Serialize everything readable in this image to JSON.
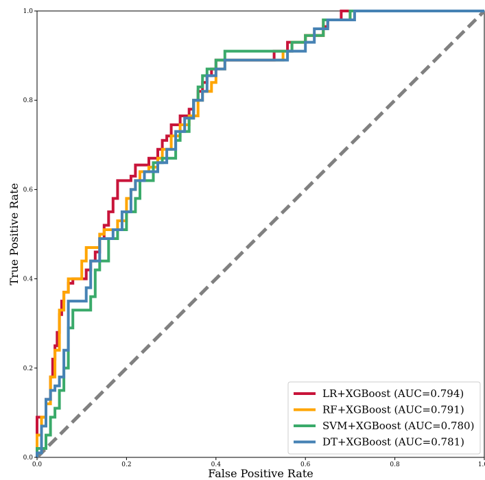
{
  "chart_data": {
    "type": "line",
    "title": "",
    "xlabel": "False Positive Rate",
    "ylabel": "True Positive Rate",
    "xlim": [
      0.0,
      1.0
    ],
    "ylim": [
      0.0,
      1.0
    ],
    "x_ticks": [
      "0.0",
      "0.2",
      "0.4",
      "0.6",
      "0.8",
      "1.0"
    ],
    "y_ticks": [
      "0.0",
      "0.2",
      "0.4",
      "0.6",
      "0.8",
      "1.0"
    ],
    "grid": false,
    "legend_position": "bottom-right",
    "diagonal": {
      "x": [
        0,
        1
      ],
      "y": [
        0,
        1
      ],
      "color": "#808080",
      "style": "dashed"
    },
    "series": [
      {
        "name": "LR+XGBoost (AUC=0.794)",
        "color": "#c8143a",
        "x": [
          0,
          0,
          0.02,
          0.02,
          0.03,
          0.03,
          0.035,
          0.035,
          0.04,
          0.04,
          0.045,
          0.045,
          0.05,
          0.05,
          0.055,
          0.055,
          0.06,
          0.06,
          0.07,
          0.07,
          0.08,
          0.08,
          0.11,
          0.11,
          0.12,
          0.12,
          0.13,
          0.13,
          0.14,
          0.14,
          0.15,
          0.15,
          0.16,
          0.16,
          0.17,
          0.17,
          0.18,
          0.18,
          0.21,
          0.21,
          0.22,
          0.22,
          0.25,
          0.25,
          0.27,
          0.27,
          0.28,
          0.28,
          0.29,
          0.29,
          0.3,
          0.3,
          0.32,
          0.32,
          0.34,
          0.34,
          0.35,
          0.35,
          0.36,
          0.36,
          0.37,
          0.37,
          0.38,
          0.38,
          0.39,
          0.39,
          0.4,
          0.4,
          0.42,
          0.42,
          0.53,
          0.53,
          0.56,
          0.56,
          0.6,
          0.6,
          0.61,
          0.61,
          0.64,
          0.64,
          0.65,
          0.65,
          0.66,
          0.66,
          0.68,
          0.68,
          0.69,
          0.69,
          1.0
        ],
        "y": [
          0,
          0.09,
          0.09,
          0.13,
          0.13,
          0.18,
          0.18,
          0.22,
          0.22,
          0.25,
          0.25,
          0.28,
          0.28,
          0.32,
          0.32,
          0.35,
          0.35,
          0.37,
          0.37,
          0.39,
          0.39,
          0.4,
          0.4,
          0.42,
          0.42,
          0.44,
          0.44,
          0.46,
          0.46,
          0.49,
          0.49,
          0.52,
          0.52,
          0.55,
          0.55,
          0.58,
          0.58,
          0.62,
          0.62,
          0.63,
          0.63,
          0.655,
          0.655,
          0.67,
          0.67,
          0.69,
          0.69,
          0.71,
          0.71,
          0.72,
          0.72,
          0.745,
          0.745,
          0.765,
          0.765,
          0.78,
          0.78,
          0.8,
          0.8,
          0.82,
          0.82,
          0.84,
          0.84,
          0.855,
          0.855,
          0.87,
          0.87,
          0.89,
          0.89,
          0.89,
          0.89,
          0.91,
          0.91,
          0.93,
          0.93,
          0.945,
          0.945,
          0.945,
          0.945,
          0.965,
          0.965,
          0.98,
          0.98,
          0.98,
          0.98,
          1.0,
          1.0,
          1.0,
          1.0
        ]
      },
      {
        "name": "RF+XGBoost (AUC=0.791)",
        "color": "#ffa500",
        "x": [
          0,
          0,
          0.01,
          0.01,
          0.02,
          0.02,
          0.03,
          0.03,
          0.04,
          0.04,
          0.05,
          0.05,
          0.06,
          0.06,
          0.07,
          0.07,
          0.09,
          0.09,
          0.1,
          0.1,
          0.11,
          0.11,
          0.13,
          0.13,
          0.14,
          0.14,
          0.15,
          0.15,
          0.18,
          0.18,
          0.2,
          0.2,
          0.21,
          0.21,
          0.22,
          0.22,
          0.23,
          0.23,
          0.25,
          0.25,
          0.27,
          0.27,
          0.28,
          0.28,
          0.3,
          0.3,
          0.32,
          0.32,
          0.34,
          0.34,
          0.36,
          0.36,
          0.37,
          0.37,
          0.39,
          0.39,
          0.4,
          0.4,
          0.42,
          0.42,
          0.55,
          0.55,
          0.57,
          0.57,
          0.6,
          0.6,
          0.64,
          0.64,
          0.7,
          0.7,
          1.0
        ],
        "y": [
          0,
          0.05,
          0.05,
          0.09,
          0.09,
          0.12,
          0.12,
          0.18,
          0.18,
          0.24,
          0.24,
          0.33,
          0.33,
          0.37,
          0.37,
          0.4,
          0.4,
          0.4,
          0.4,
          0.44,
          0.44,
          0.47,
          0.47,
          0.47,
          0.47,
          0.5,
          0.5,
          0.51,
          0.51,
          0.53,
          0.53,
          0.58,
          0.58,
          0.6,
          0.6,
          0.62,
          0.62,
          0.64,
          0.64,
          0.65,
          0.65,
          0.67,
          0.67,
          0.69,
          0.69,
          0.72,
          0.72,
          0.745,
          0.745,
          0.765,
          0.765,
          0.8,
          0.8,
          0.82,
          0.82,
          0.84,
          0.84,
          0.87,
          0.87,
          0.89,
          0.89,
          0.91,
          0.91,
          0.93,
          0.93,
          0.945,
          0.945,
          0.98,
          0.98,
          1.0,
          1.0
        ]
      },
      {
        "name": "SVM+XGBoost (AUC=0.780)",
        "color": "#3aaa6a",
        "x": [
          0,
          0,
          0.02,
          0.02,
          0.03,
          0.03,
          0.04,
          0.04,
          0.05,
          0.05,
          0.06,
          0.06,
          0.07,
          0.07,
          0.08,
          0.08,
          0.12,
          0.12,
          0.13,
          0.13,
          0.14,
          0.14,
          0.16,
          0.16,
          0.18,
          0.18,
          0.2,
          0.2,
          0.22,
          0.22,
          0.23,
          0.23,
          0.26,
          0.26,
          0.28,
          0.28,
          0.31,
          0.31,
          0.32,
          0.32,
          0.34,
          0.34,
          0.35,
          0.35,
          0.36,
          0.36,
          0.37,
          0.37,
          0.38,
          0.38,
          0.4,
          0.4,
          0.42,
          0.42,
          0.56,
          0.56,
          0.57,
          0.57,
          0.6,
          0.6,
          0.64,
          0.64,
          0.7,
          0.7,
          1.0
        ],
        "y": [
          0,
          0.02,
          0.02,
          0.05,
          0.05,
          0.09,
          0.09,
          0.11,
          0.11,
          0.15,
          0.15,
          0.2,
          0.2,
          0.29,
          0.29,
          0.33,
          0.33,
          0.36,
          0.36,
          0.42,
          0.42,
          0.44,
          0.44,
          0.49,
          0.49,
          0.51,
          0.51,
          0.55,
          0.55,
          0.58,
          0.58,
          0.62,
          0.62,
          0.66,
          0.66,
          0.67,
          0.67,
          0.71,
          0.71,
          0.73,
          0.73,
          0.76,
          0.76,
          0.8,
          0.8,
          0.83,
          0.83,
          0.855,
          0.855,
          0.87,
          0.87,
          0.89,
          0.89,
          0.91,
          0.91,
          0.91,
          0.91,
          0.93,
          0.93,
          0.945,
          0.945,
          0.98,
          0.98,
          1.0,
          1.0
        ]
      },
      {
        "name": "DT+XGBoost (AUC=0.781)",
        "color": "#4682b4",
        "x": [
          0,
          0,
          0.01,
          0.01,
          0.02,
          0.02,
          0.03,
          0.03,
          0.04,
          0.04,
          0.05,
          0.05,
          0.06,
          0.06,
          0.07,
          0.07,
          0.1,
          0.1,
          0.11,
          0.11,
          0.12,
          0.12,
          0.14,
          0.14,
          0.17,
          0.17,
          0.19,
          0.19,
          0.21,
          0.21,
          0.22,
          0.22,
          0.24,
          0.24,
          0.27,
          0.27,
          0.29,
          0.29,
          0.31,
          0.31,
          0.33,
          0.33,
          0.35,
          0.35,
          0.37,
          0.37,
          0.38,
          0.38,
          0.4,
          0.4,
          0.42,
          0.42,
          0.54,
          0.54,
          0.56,
          0.56,
          0.6,
          0.6,
          0.62,
          0.62,
          0.65,
          0.65,
          0.71,
          0.71,
          1.0
        ],
        "y": [
          0,
          0.01,
          0.01,
          0.07,
          0.07,
          0.13,
          0.13,
          0.15,
          0.15,
          0.16,
          0.16,
          0.18,
          0.18,
          0.24,
          0.24,
          0.35,
          0.35,
          0.35,
          0.35,
          0.38,
          0.38,
          0.44,
          0.44,
          0.49,
          0.49,
          0.51,
          0.51,
          0.55,
          0.55,
          0.6,
          0.6,
          0.62,
          0.62,
          0.64,
          0.64,
          0.66,
          0.66,
          0.69,
          0.69,
          0.73,
          0.73,
          0.76,
          0.76,
          0.8,
          0.8,
          0.82,
          0.82,
          0.855,
          0.855,
          0.87,
          0.87,
          0.89,
          0.89,
          0.89,
          0.89,
          0.91,
          0.91,
          0.93,
          0.93,
          0.96,
          0.96,
          0.98,
          0.98,
          1.0,
          1.0
        ]
      }
    ]
  }
}
